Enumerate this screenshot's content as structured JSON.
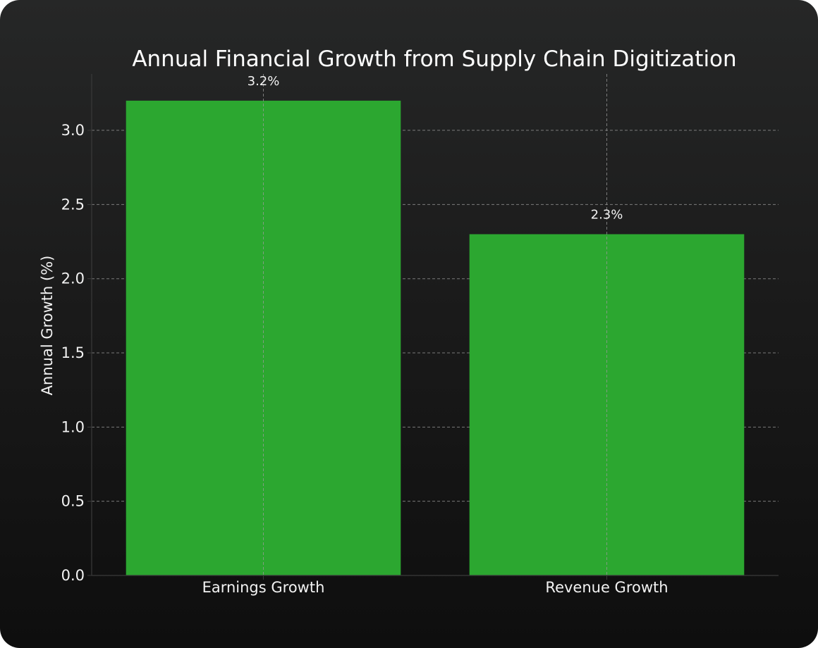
{
  "chart_data": {
    "type": "bar",
    "title": "Annual Financial Growth from Supply Chain Digitization",
    "xlabel": "",
    "ylabel": "Annual Growth (%)",
    "categories": [
      "Earnings Growth",
      "Revenue Growth"
    ],
    "values": [
      3.2,
      2.3
    ],
    "data_labels": [
      "3.2%",
      "2.3%"
    ],
    "ylim": [
      0,
      3.38
    ],
    "yticks": [
      0.0,
      0.5,
      1.0,
      1.5,
      2.0,
      2.5,
      3.0
    ],
    "ytick_labels": [
      "0.0",
      "0.5",
      "1.0",
      "1.5",
      "2.0",
      "2.5",
      "3.0"
    ],
    "grid": true,
    "bar_color": "#2ca730",
    "background_color": "#141414",
    "grid_color": "#9a9a9a",
    "text_color": "#f2f2f2"
  }
}
